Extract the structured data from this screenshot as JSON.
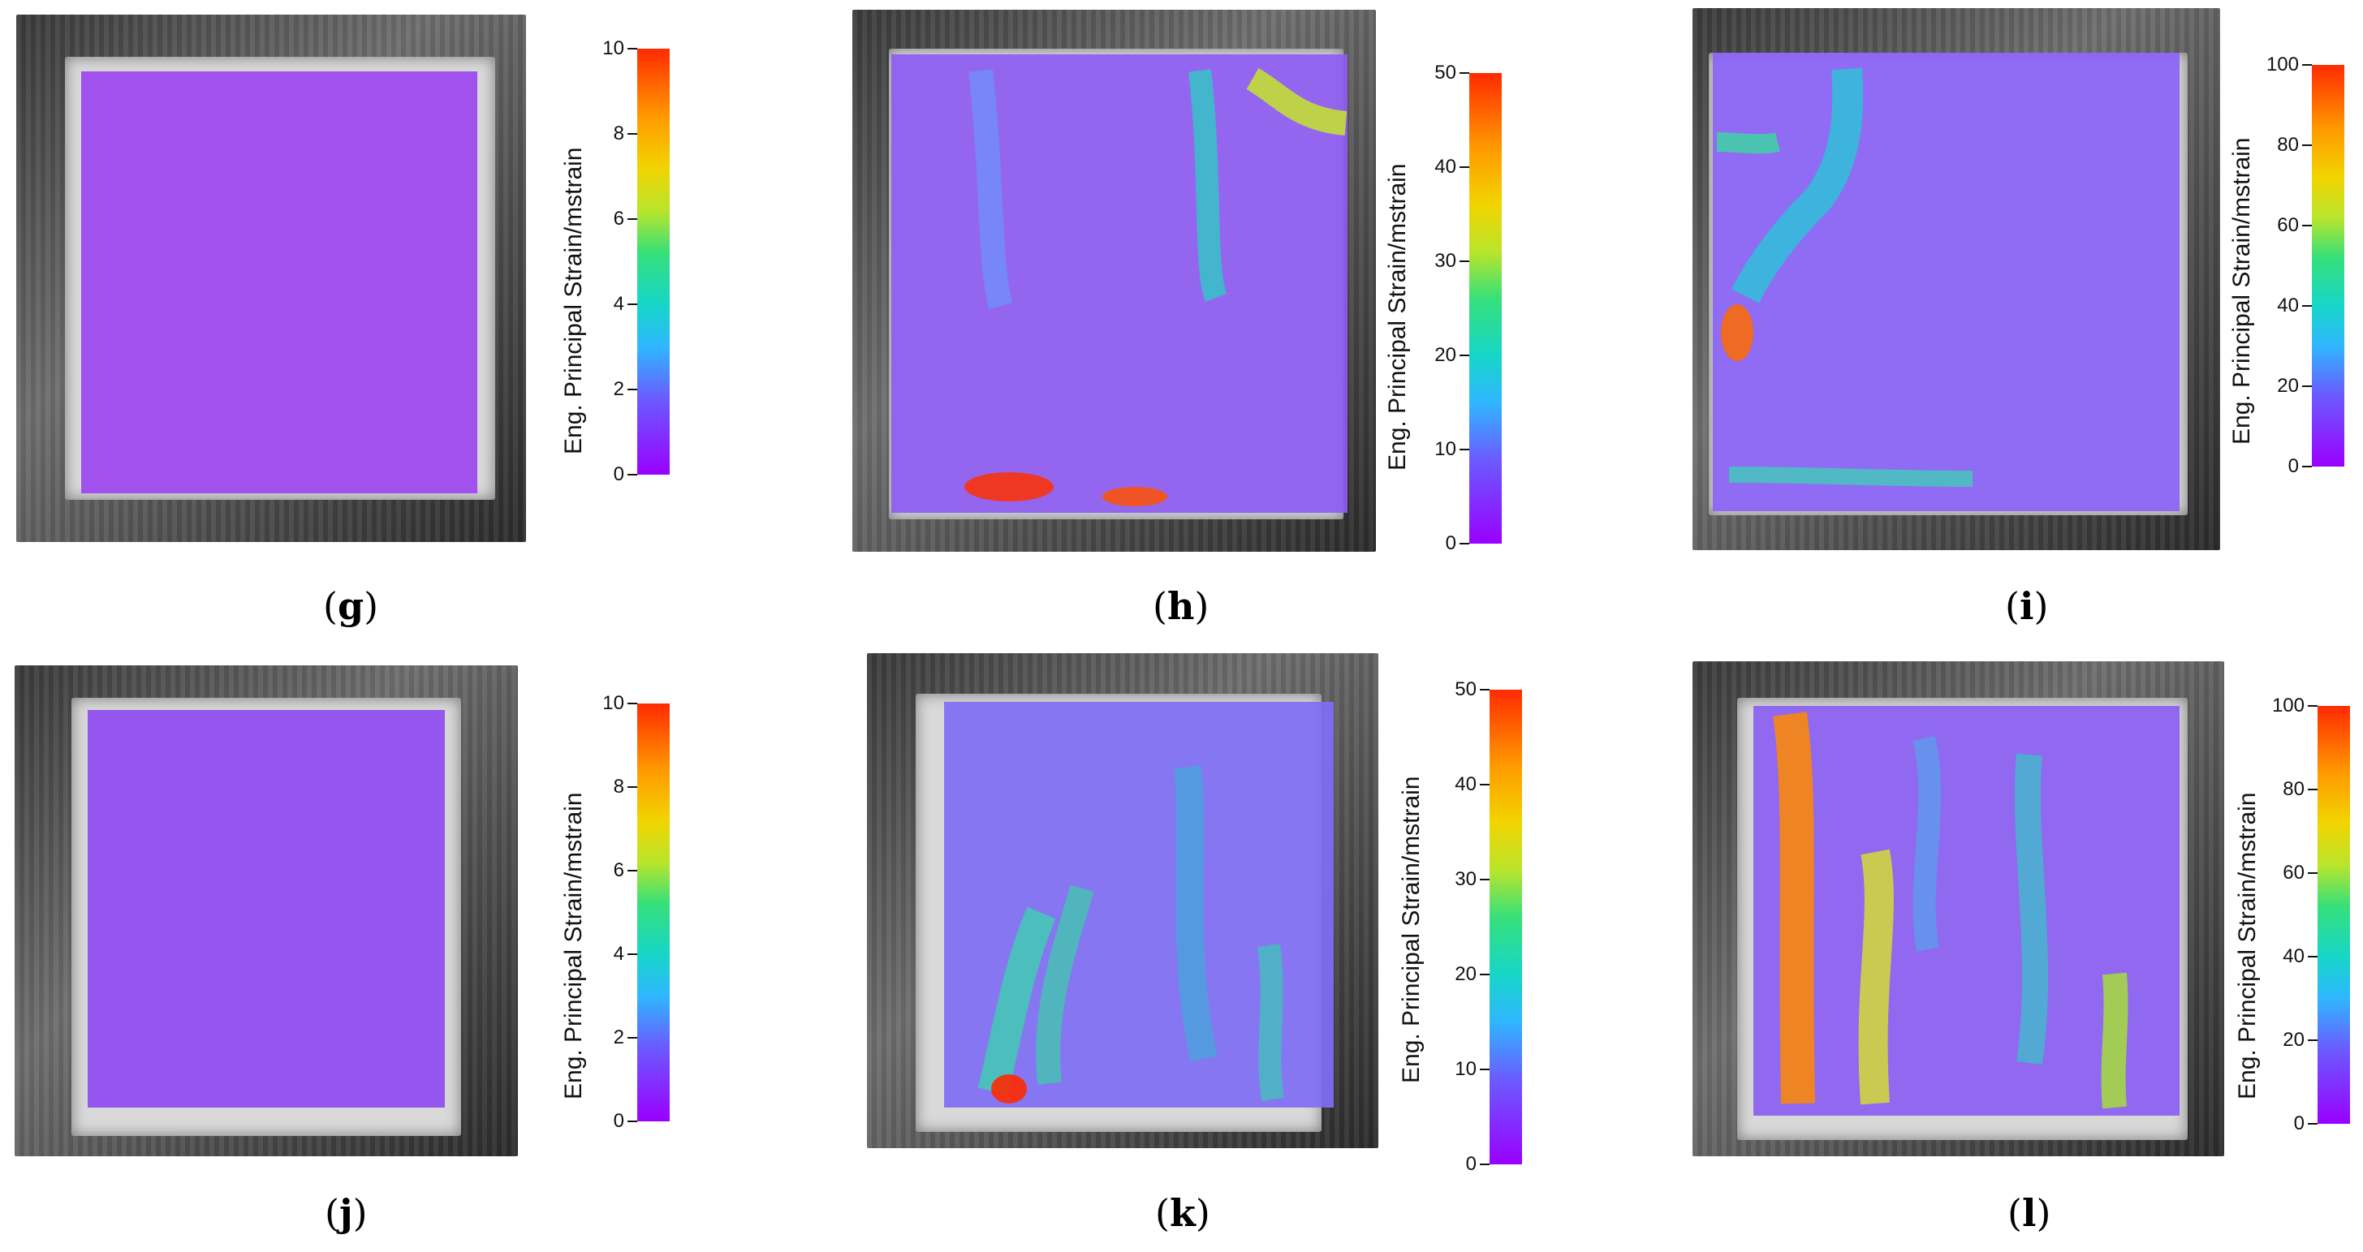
{
  "panels": [
    {
      "id": "g",
      "label_open": "(",
      "label_letter": "g",
      "label_close": ")"
    },
    {
      "id": "h",
      "label_open": "(",
      "label_letter": "h",
      "label_close": ")"
    },
    {
      "id": "i",
      "label_open": "(",
      "label_letter": "i",
      "label_close": ")"
    },
    {
      "id": "j",
      "label_open": "(",
      "label_letter": "j",
      "label_close": ")"
    },
    {
      "id": "k",
      "label_open": "(",
      "label_letter": "k",
      "label_close": ")"
    },
    {
      "id": "l",
      "label_open": "(",
      "label_letter": "l",
      "label_close": ")"
    }
  ],
  "colorbar_title": "Eng. Principal Strain/mstrain",
  "colorbars": {
    "g": {
      "ticks": [
        "10",
        "8",
        "6",
        "4",
        "2",
        "0"
      ]
    },
    "h": {
      "ticks": [
        "50",
        "40",
        "30",
        "20",
        "10",
        "0"
      ]
    },
    "i": {
      "ticks": [
        "100",
        "80",
        "60",
        "40",
        "20",
        "0"
      ]
    },
    "j": {
      "ticks": [
        "10",
        "8",
        "6",
        "4",
        "2",
        "0"
      ]
    },
    "k": {
      "ticks": [
        "50",
        "40",
        "30",
        "20",
        "10",
        "0"
      ]
    },
    "l": {
      "ticks": [
        "100",
        "80",
        "60",
        "40",
        "20",
        "0"
      ]
    }
  },
  "colors": {
    "low": "#9a00ff",
    "mid": "#16d6c8",
    "high": "#ff2a00"
  }
}
